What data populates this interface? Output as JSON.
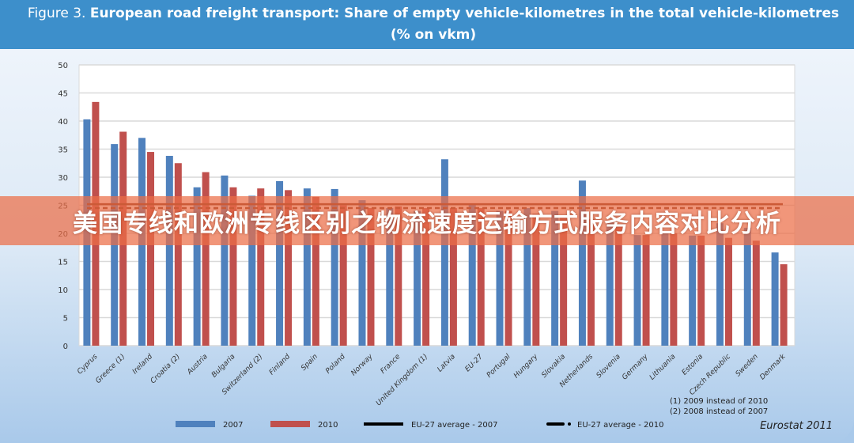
{
  "chart_data": {
    "type": "bar",
    "title_prefix": "Figure 3.",
    "title": "European road freight transport: Share of empty vehicle-kilometres in the total vehicle-kilometres (% on vkm)",
    "categories": [
      "Cyprus",
      "Greece (1)",
      "Ireland",
      "Croatia (2)",
      "Austria",
      "Bulgaria",
      "Switzerland (2)",
      "Finland",
      "Spain",
      "Poland",
      "Norway",
      "France",
      "United Kingdom (1)",
      "Latvia",
      "EU-27",
      "Portugal",
      "Hungary",
      "Slovakia",
      "Netherlands",
      "Slovenia",
      "Germany",
      "Lithuania",
      "Estonia",
      "Czech Republic",
      "Sweden",
      "Denmark"
    ],
    "series": [
      {
        "name": "2007",
        "color": "#4f81bd",
        "values": [
          40.3,
          35.9,
          37.0,
          33.8,
          28.2,
          30.3,
          26.7,
          29.3,
          28.0,
          27.9,
          25.9,
          24.5,
          24.0,
          33.2,
          25.2,
          24.0,
          24.5,
          24.0,
          29.4,
          22.0,
          19.7,
          20.0,
          19.6,
          21.8,
          21.0,
          16.6
        ]
      },
      {
        "name": "2010",
        "color": "#c0504d",
        "values": [
          43.4,
          38.1,
          34.5,
          32.5,
          30.9,
          28.2,
          28.0,
          27.7,
          26.5,
          25.0,
          24.5,
          24.8,
          24.5,
          24.5,
          24.5,
          24.0,
          23.5,
          23.0,
          22.5,
          21.5,
          19.7,
          20.0,
          19.6,
          19.2,
          18.7,
          14.5
        ]
      }
    ],
    "reference_lines": [
      {
        "name": "EU-27 average - 2007",
        "value": 25.2,
        "style": "solid",
        "color": "#000000"
      },
      {
        "name": "EU-27 average - 2010",
        "value": 24.5,
        "style": "dashed",
        "color": "#000000"
      }
    ],
    "ylim": [
      0,
      50
    ],
    "yticks": [
      0,
      5,
      10,
      15,
      20,
      25,
      30,
      35,
      40,
      45,
      50
    ],
    "grid": true,
    "legend": "bottom",
    "notes": [
      "(1) 2009 instead of 2010",
      "(2) 2008 instead of 2007"
    ],
    "source": "Eurostat 2011"
  },
  "overlay_banner": "美国专线和欧洲专线区别之物流速度运输方式服务内容对比分析"
}
